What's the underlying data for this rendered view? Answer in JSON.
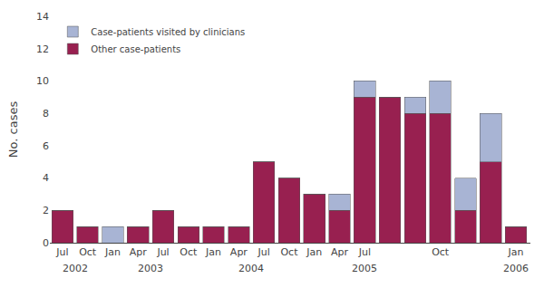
{
  "chart_data": {
    "type": "bar",
    "stacked": true,
    "categories": [
      "Jul",
      "Oct",
      "Jan",
      "Apr",
      "Jul",
      "Oct",
      "Jan",
      "Apr",
      "Jul",
      "Oct",
      "Jan",
      "Apr",
      "Jul",
      null,
      null,
      "Oct",
      null,
      null,
      "Jan"
    ],
    "series": [
      {
        "name": "Other case-patients",
        "color": "#982050",
        "values": [
          2,
          1,
          0,
          1,
          2,
          1,
          1,
          1,
          5,
          4,
          3,
          2,
          9,
          9,
          8,
          8,
          2,
          5,
          1
        ]
      },
      {
        "name": "Case-patients visited by clinicians",
        "color": "#A8B4D4",
        "values": [
          0,
          0,
          1,
          0,
          0,
          0,
          0,
          0,
          0,
          0,
          0,
          1,
          1,
          0,
          1,
          2,
          2,
          3,
          0
        ]
      }
    ],
    "ylabel": "No. cases",
    "ylim": [
      0,
      14
    ],
    "yticks": [
      0,
      2,
      4,
      6,
      8,
      10,
      12,
      14
    ],
    "annotations": [
      {
        "text": "2002",
        "x": 0.5
      },
      {
        "text": "2003",
        "x": 3.5
      },
      {
        "text": "2004",
        "x": 7.5
      },
      {
        "text": "2005",
        "x": 12.0
      },
      {
        "text": "2006",
        "x": 18.0
      }
    ],
    "grid": false,
    "legend": "upper left"
  }
}
